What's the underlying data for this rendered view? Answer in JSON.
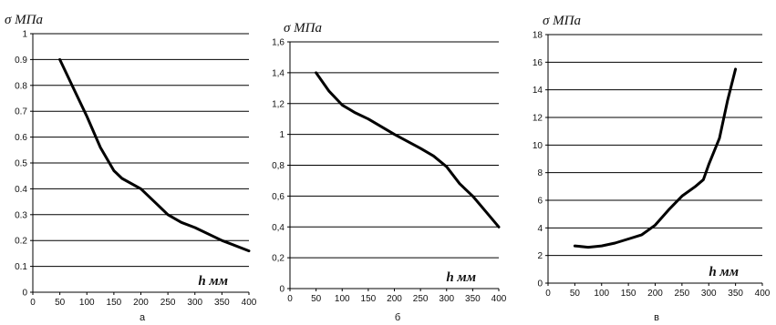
{
  "chart_data": [
    {
      "type": "line",
      "title": "",
      "ylabel": "σ МПа",
      "xlabel": "h мм",
      "caption": "а",
      "xlim": [
        0,
        400
      ],
      "ylim": [
        0,
        1
      ],
      "xticks": [
        0,
        50,
        100,
        150,
        200,
        250,
        300,
        350,
        400
      ],
      "yticks": [
        0,
        0.1,
        0.2,
        0.3,
        0.4,
        0.5,
        0.6,
        0.7,
        0.8,
        0.9,
        1
      ],
      "ytick_labels": [
        "0",
        "0.1",
        "0.2",
        "0.3",
        "0.4",
        "0.5",
        "0.6",
        "0.7",
        "0.8",
        "0.9",
        "1"
      ],
      "xtick_labels": [
        "0",
        "50",
        "100",
        "150",
        "200",
        "250",
        "300",
        "350",
        "400"
      ],
      "grid": true,
      "series": [
        {
          "x": [
            50,
            75,
            100,
            125,
            150,
            165,
            200,
            230,
            250,
            275,
            300,
            350,
            400
          ],
          "y": [
            0.9,
            0.79,
            0.68,
            0.56,
            0.47,
            0.44,
            0.4,
            0.34,
            0.3,
            0.27,
            0.25,
            0.2,
            0.16
          ]
        }
      ]
    },
    {
      "type": "line",
      "title": "",
      "ylabel": "σ МПа",
      "xlabel": "h мм",
      "caption": "б",
      "xlim": [
        0,
        400
      ],
      "ylim": [
        0,
        1.6
      ],
      "xticks": [
        0,
        50,
        100,
        150,
        200,
        250,
        300,
        350,
        400
      ],
      "yticks": [
        0,
        0.2,
        0.4,
        0.6,
        0.8,
        1,
        1.2,
        1.4,
        1.6
      ],
      "ytick_labels": [
        "0",
        "0,2",
        "0,4",
        "0,6",
        "0,8",
        "1",
        "1,2",
        "1,4",
        "1,6"
      ],
      "xtick_labels": [
        "0",
        "50",
        "100",
        "150",
        "200",
        "250",
        "300",
        "350",
        "400"
      ],
      "grid": true,
      "series": [
        {
          "x": [
            50,
            75,
            100,
            125,
            150,
            200,
            250,
            275,
            300,
            325,
            350,
            375,
            400
          ],
          "y": [
            1.4,
            1.28,
            1.19,
            1.14,
            1.1,
            1.0,
            0.91,
            0.86,
            0.79,
            0.68,
            0.6,
            0.5,
            0.4
          ]
        }
      ]
    },
    {
      "type": "line",
      "title": "",
      "ylabel": "σ МПа",
      "xlabel": "h мм",
      "caption": "в",
      "xlim": [
        0,
        400
      ],
      "ylim": [
        0,
        18
      ],
      "xticks": [
        0,
        50,
        100,
        150,
        200,
        250,
        300,
        350,
        400
      ],
      "yticks": [
        0,
        2,
        4,
        6,
        8,
        10,
        12,
        14,
        16,
        18
      ],
      "ytick_labels": [
        "0",
        "2",
        "4",
        "6",
        "8",
        "10",
        "12",
        "14",
        "16",
        "18"
      ],
      "xtick_labels": [
        "0",
        "50",
        "100",
        "150",
        "200",
        "250",
        "300",
        "350",
        "400"
      ],
      "grid": true,
      "series": [
        {
          "x": [
            50,
            75,
            100,
            125,
            150,
            175,
            200,
            225,
            250,
            275,
            290,
            300,
            320,
            335,
            350
          ],
          "y": [
            2.7,
            2.6,
            2.7,
            2.9,
            3.2,
            3.5,
            4.2,
            5.3,
            6.3,
            7.0,
            7.5,
            8.6,
            10.5,
            13.2,
            15.5
          ]
        }
      ]
    }
  ]
}
